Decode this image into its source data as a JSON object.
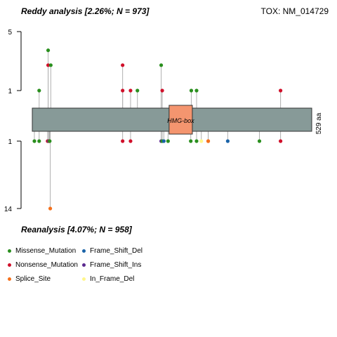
{
  "chart_data": {
    "type": "lollipop",
    "title_left": "Reddy analysis [2.26%; N = 973]",
    "title_right": "TOX: NM_014729",
    "bottom_title": "Reanalysis [4.07%; N = 958]",
    "protein_length_label": "529 aa",
    "protein_length": 529,
    "domains": [
      {
        "name": "HMG-box",
        "start": 259,
        "end": 303,
        "color": "#F4956F"
      }
    ],
    "y_axis": {
      "top_ticks": [
        "5",
        "1"
      ],
      "bottom_ticks": [
        "1",
        "14"
      ],
      "top_max": 5,
      "bottom_max": 14
    },
    "series_colors": {
      "Missense_Mutation": "#2a8f1e",
      "Nonsense_Mutation": "#d0102a",
      "Splice_Site": "#f5701b",
      "Frame_Shift_Del": "#1a63a8",
      "Frame_Shift_Ins": "#5b2a8f",
      "In_Frame_Del": "#fff68c"
    },
    "top_mutations": [
      {
        "pos": 13,
        "count": 1,
        "type": "Missense_Mutation"
      },
      {
        "pos": 30,
        "count": 2,
        "type": "Nonsense_Mutation"
      },
      {
        "pos": 30,
        "count": 3,
        "type": "Missense_Mutation"
      },
      {
        "pos": 35,
        "count": 2,
        "type": "Missense_Mutation"
      },
      {
        "pos": 171,
        "count": 2,
        "type": "Nonsense_Mutation"
      },
      {
        "pos": 171,
        "count": 1,
        "type": "Nonsense_Mutation"
      },
      {
        "pos": 186,
        "count": 1,
        "type": "Nonsense_Mutation"
      },
      {
        "pos": 199,
        "count": 1,
        "type": "Missense_Mutation"
      },
      {
        "pos": 246,
        "count": 1,
        "type": "Nonsense_Mutation"
      },
      {
        "pos": 244,
        "count": 2,
        "type": "Missense_Mutation"
      },
      {
        "pos": 301,
        "count": 1,
        "type": "Missense_Mutation"
      },
      {
        "pos": 311,
        "count": 1,
        "type": "Missense_Mutation"
      },
      {
        "pos": 470,
        "count": 1,
        "type": "Nonsense_Mutation"
      }
    ],
    "bottom_mutations": [
      {
        "pos": 4,
        "count": 1,
        "type": "Missense_Mutation"
      },
      {
        "pos": 13,
        "count": 1,
        "type": "Missense_Mutation"
      },
      {
        "pos": 29,
        "count": 1,
        "type": "Nonsense_Mutation"
      },
      {
        "pos": 31,
        "count": 1,
        "type": "Frame_Shift_Del"
      },
      {
        "pos": 32,
        "count": 1,
        "type": "Nonsense_Mutation"
      },
      {
        "pos": 33,
        "count": 1,
        "type": "Missense_Mutation"
      },
      {
        "pos": 34,
        "count": 14,
        "type": "Splice_Site"
      },
      {
        "pos": 171,
        "count": 1,
        "type": "Nonsense_Mutation"
      },
      {
        "pos": 186,
        "count": 1,
        "type": "Nonsense_Mutation"
      },
      {
        "pos": 244,
        "count": 1,
        "type": "Frame_Shift_Ins"
      },
      {
        "pos": 246,
        "count": 1,
        "type": "Missense_Mutation"
      },
      {
        "pos": 249,
        "count": 1,
        "type": "Frame_Shift_Del"
      },
      {
        "pos": 257,
        "count": 1,
        "type": "Missense_Mutation"
      },
      {
        "pos": 300,
        "count": 1,
        "type": "Missense_Mutation"
      },
      {
        "pos": 311,
        "count": 1,
        "type": "Missense_Mutation"
      },
      {
        "pos": 320,
        "count": 1,
        "type": "In_Frame_Del"
      },
      {
        "pos": 333,
        "count": 1,
        "type": "Splice_Site"
      },
      {
        "pos": 333,
        "count": 1,
        "type": "Splice_Site"
      },
      {
        "pos": 370,
        "count": 1,
        "type": "Frame_Shift_Del"
      },
      {
        "pos": 430,
        "count": 1,
        "type": "Missense_Mutation"
      },
      {
        "pos": 470,
        "count": 1,
        "type": "Nonsense_Mutation"
      }
    ]
  },
  "legend": [
    {
      "label": "Missense_Mutation",
      "color": "#2a8f1e"
    },
    {
      "label": "Frame_Shift_Del",
      "color": "#1a63a8"
    },
    {
      "label": "Nonsense_Mutation",
      "color": "#d0102a"
    },
    {
      "label": "Frame_Shift_Ins",
      "color": "#5b2a8f"
    },
    {
      "label": "Splice_Site",
      "color": "#f5701b"
    },
    {
      "label": "In_Frame_Del",
      "color": "#fff68c"
    }
  ]
}
